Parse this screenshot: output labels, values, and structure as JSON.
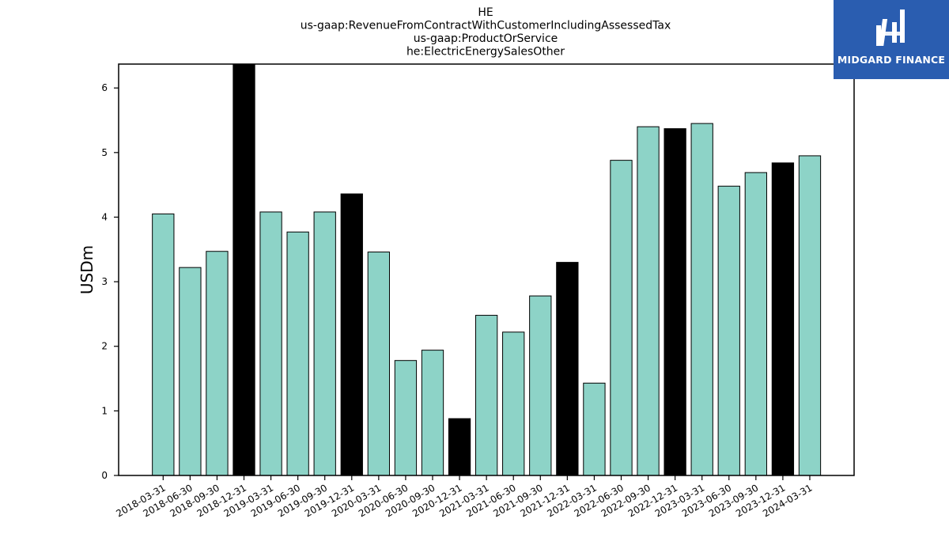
{
  "chart_data": {
    "type": "bar",
    "title_lines": [
      "HE",
      "us-gaap:RevenueFromContractWithCustomerIncludingAssessedTax",
      "us-gaap:ProductOrService",
      "he:ElectricEnergySalesOther"
    ],
    "xlabel": "",
    "ylabel": "USDm",
    "ylim": [
      0,
      6.37
    ],
    "yticks": [
      0,
      1,
      2,
      3,
      4,
      5,
      6
    ],
    "grid": false,
    "categories": [
      "2018-03-31",
      "2018-06-30",
      "2018-09-30",
      "2018-12-31",
      "2019-03-31",
      "2019-06-30",
      "2019-09-30",
      "2019-12-31",
      "2020-03-31",
      "2020-06-30",
      "2020-09-30",
      "2020-12-31",
      "2021-03-31",
      "2021-06-30",
      "2021-09-30",
      "2021-12-31",
      "2022-03-31",
      "2022-06-30",
      "2022-09-30",
      "2022-12-31",
      "2023-03-31",
      "2023-06-30",
      "2023-09-30",
      "2023-12-31",
      "2024-03-31"
    ],
    "values": [
      4.05,
      3.22,
      3.47,
      6.45,
      4.08,
      3.77,
      4.08,
      4.36,
      3.46,
      1.78,
      1.94,
      0.88,
      2.48,
      2.22,
      2.78,
      3.3,
      1.43,
      4.88,
      5.4,
      5.37,
      5.45,
      4.48,
      4.69,
      4.84,
      4.95
    ],
    "year_end_flags": [
      false,
      false,
      false,
      true,
      false,
      false,
      false,
      true,
      false,
      false,
      false,
      true,
      false,
      false,
      false,
      true,
      false,
      false,
      false,
      true,
      false,
      false,
      false,
      true,
      false
    ],
    "colors": {
      "quarter": "#8dd3c7",
      "year_end": "#000000",
      "edge": "#000000"
    }
  },
  "logo": {
    "text": "MIDGARD FINANCE",
    "background": "#2a5db0"
  }
}
